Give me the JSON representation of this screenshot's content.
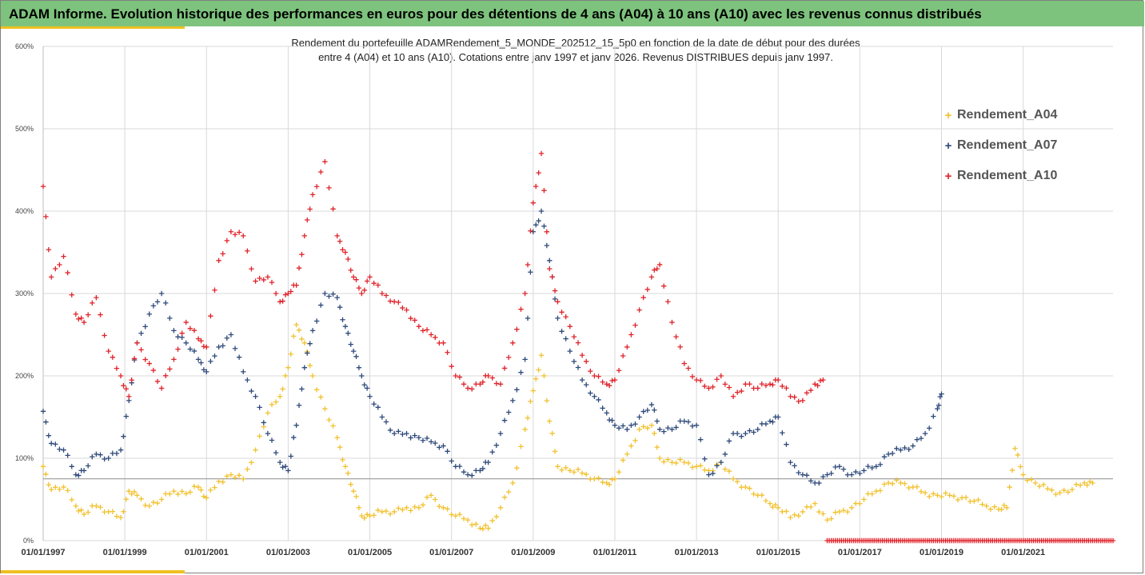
{
  "header": {
    "title": "ADAM Informe. Evolution historique des performances en euros pour des détentions de 4 ans (A04) à 10 ans (A10) avec les revenus connus distribués"
  },
  "chart_data": {
    "type": "scatter",
    "title_line1": "Rendement du portefeuille ADAMRendement_5_MONDE_202512_15_5p0 en fonction de la date de début pour des durées",
    "title_line2": "entre 4 (A04) et 10 ans (A10). Cotations entre janv 1997 et janv 2026. Revenus DISTRIBUES depuis janv 1997.",
    "xlabel": "",
    "ylabel": "",
    "xlim": [
      1997.0,
      2023.2
    ],
    "ylim": [
      0,
      600
    ],
    "reference_line": 75,
    "y_ticks": [
      "0%",
      "100%",
      "200%",
      "300%",
      "400%",
      "500%",
      "600%"
    ],
    "y_tick_values": [
      0,
      100,
      200,
      300,
      400,
      500,
      600
    ],
    "x_ticks": [
      "01/01/1997",
      "01/01/1999",
      "01/01/2001",
      "01/01/2003",
      "01/01/2005",
      "01/01/2007",
      "01/01/2009",
      "01/01/2011",
      "01/01/2013",
      "01/01/2015",
      "01/01/2017",
      "01/01/2019",
      "01/01/2021"
    ],
    "x_tick_values": [
      1997,
      1999,
      2001,
      2003,
      2005,
      2007,
      2009,
      2011,
      2013,
      2015,
      2017,
      2019,
      2021
    ],
    "series": [
      {
        "name": "Rendement_A04",
        "color": "#f2c12e",
        "points": [
          [
            1997.0,
            90
          ],
          [
            1997.2,
            62
          ],
          [
            1997.5,
            65
          ],
          [
            1997.8,
            42
          ],
          [
            1998.0,
            32
          ],
          [
            1998.3,
            42
          ],
          [
            1998.6,
            35
          ],
          [
            1998.9,
            28
          ],
          [
            1999.1,
            60
          ],
          [
            1999.3,
            55
          ],
          [
            1999.6,
            42
          ],
          [
            1999.9,
            50
          ],
          [
            2000.2,
            60
          ],
          [
            2000.5,
            57
          ],
          [
            2000.8,
            65
          ],
          [
            2001.0,
            52
          ],
          [
            2001.3,
            72
          ],
          [
            2001.6,
            80
          ],
          [
            2001.9,
            75
          ],
          [
            2002.2,
            110
          ],
          [
            2002.5,
            155
          ],
          [
            2002.8,
            175
          ],
          [
            2003.0,
            210
          ],
          [
            2003.2,
            262
          ],
          [
            2003.4,
            240
          ],
          [
            2003.6,
            200
          ],
          [
            2003.9,
            160
          ],
          [
            2004.2,
            125
          ],
          [
            2004.4,
            90
          ],
          [
            2004.6,
            60
          ],
          [
            2004.8,
            30
          ],
          [
            2005.0,
            30
          ],
          [
            2005.3,
            35
          ],
          [
            2005.6,
            35
          ],
          [
            2005.9,
            40
          ],
          [
            2006.2,
            40
          ],
          [
            2006.5,
            55
          ],
          [
            2006.8,
            40
          ],
          [
            2007.1,
            30
          ],
          [
            2007.4,
            25
          ],
          [
            2007.7,
            15
          ],
          [
            2007.9,
            15
          ],
          [
            2008.2,
            40
          ],
          [
            2008.5,
            70
          ],
          [
            2008.8,
            135
          ],
          [
            2009.0,
            182
          ],
          [
            2009.2,
            225
          ],
          [
            2009.4,
            145
          ],
          [
            2009.6,
            90
          ],
          [
            2009.9,
            85
          ],
          [
            2010.2,
            82
          ],
          [
            2010.5,
            75
          ],
          [
            2010.8,
            70
          ],
          [
            2011.0,
            75
          ],
          [
            2011.3,
            105
          ],
          [
            2011.6,
            135
          ],
          [
            2011.9,
            140
          ],
          [
            2012.1,
            100
          ],
          [
            2012.4,
            95
          ],
          [
            2012.7,
            95
          ],
          [
            2013.0,
            90
          ],
          [
            2013.3,
            85
          ],
          [
            2013.6,
            95
          ],
          [
            2013.9,
            75
          ],
          [
            2014.2,
            65
          ],
          [
            2014.5,
            55
          ],
          [
            2014.8,
            45
          ],
          [
            2015.0,
            40
          ],
          [
            2015.3,
            28
          ],
          [
            2015.6,
            35
          ],
          [
            2015.9,
            45
          ],
          [
            2016.2,
            25
          ],
          [
            2016.5,
            35
          ],
          [
            2016.8,
            40
          ],
          [
            2017.1,
            50
          ],
          [
            2017.4,
            60
          ],
          [
            2017.7,
            70
          ],
          [
            2018.0,
            70
          ],
          [
            2018.3,
            65
          ],
          [
            2018.6,
            58
          ],
          [
            2018.9,
            55
          ],
          [
            2019.2,
            55
          ],
          [
            2019.5,
            52
          ],
          [
            2019.8,
            48
          ],
          [
            2020.1,
            42
          ],
          [
            2020.4,
            38
          ],
          [
            2020.6,
            40
          ],
          [
            2020.8,
            112
          ],
          [
            2021.0,
            80
          ],
          [
            2021.3,
            70
          ],
          [
            2021.6,
            63
          ],
          [
            2021.9,
            58
          ],
          [
            2022.2,
            62
          ],
          [
            2022.5,
            70
          ],
          [
            2022.7,
            70
          ]
        ]
      },
      {
        "name": "Rendement_A07",
        "color": "#2e4a7a",
        "points": [
          [
            1997.0,
            157
          ],
          [
            1997.2,
            118
          ],
          [
            1997.5,
            110
          ],
          [
            1997.8,
            80
          ],
          [
            1998.0,
            85
          ],
          [
            1998.3,
            105
          ],
          [
            1998.6,
            100
          ],
          [
            1998.9,
            110
          ],
          [
            1999.1,
            170
          ],
          [
            1999.3,
            240
          ],
          [
            1999.6,
            275
          ],
          [
            1999.9,
            300
          ],
          [
            2000.2,
            255
          ],
          [
            2000.5,
            240
          ],
          [
            2000.8,
            220
          ],
          [
            2001.0,
            205
          ],
          [
            2001.3,
            235
          ],
          [
            2001.6,
            250
          ],
          [
            2001.9,
            205
          ],
          [
            2002.2,
            175
          ],
          [
            2002.5,
            130
          ],
          [
            2002.8,
            95
          ],
          [
            2003.0,
            85
          ],
          [
            2003.2,
            140
          ],
          [
            2003.4,
            210
          ],
          [
            2003.6,
            255
          ],
          [
            2003.9,
            300
          ],
          [
            2004.2,
            295
          ],
          [
            2004.4,
            260
          ],
          [
            2004.6,
            230
          ],
          [
            2004.8,
            200
          ],
          [
            2005.0,
            175
          ],
          [
            2005.3,
            150
          ],
          [
            2005.6,
            130
          ],
          [
            2005.9,
            130
          ],
          [
            2006.2,
            125
          ],
          [
            2006.5,
            120
          ],
          [
            2006.8,
            115
          ],
          [
            2007.1,
            90
          ],
          [
            2007.4,
            80
          ],
          [
            2007.7,
            85
          ],
          [
            2007.9,
            95
          ],
          [
            2008.2,
            130
          ],
          [
            2008.5,
            170
          ],
          [
            2008.8,
            220
          ],
          [
            2009.0,
            375
          ],
          [
            2009.2,
            400
          ],
          [
            2009.4,
            340
          ],
          [
            2009.6,
            270
          ],
          [
            2009.9,
            230
          ],
          [
            2010.2,
            195
          ],
          [
            2010.5,
            175
          ],
          [
            2010.8,
            155
          ],
          [
            2011.0,
            140
          ],
          [
            2011.3,
            135
          ],
          [
            2011.6,
            150
          ],
          [
            2011.9,
            165
          ],
          [
            2012.1,
            135
          ],
          [
            2012.4,
            135
          ],
          [
            2012.7,
            145
          ],
          [
            2013.0,
            140
          ],
          [
            2013.3,
            80
          ],
          [
            2013.6,
            95
          ],
          [
            2013.9,
            130
          ],
          [
            2014.2,
            130
          ],
          [
            2014.5,
            135
          ],
          [
            2014.8,
            145
          ],
          [
            2015.0,
            150
          ],
          [
            2015.3,
            95
          ],
          [
            2015.6,
            80
          ],
          [
            2015.9,
            70
          ],
          [
            2016.2,
            80
          ],
          [
            2016.5,
            90
          ],
          [
            2016.8,
            80
          ],
          [
            2017.1,
            85
          ],
          [
            2017.4,
            90
          ],
          [
            2017.7,
            105
          ],
          [
            2018.0,
            110
          ],
          [
            2018.3,
            115
          ],
          [
            2018.6,
            130
          ],
          [
            2018.9,
            160
          ],
          [
            2019.0,
            178
          ]
        ]
      },
      {
        "name": "Rendement_A10",
        "color": "#e0232a",
        "points": [
          [
            1997.0,
            430
          ],
          [
            1997.2,
            320
          ],
          [
            1997.5,
            345
          ],
          [
            1997.8,
            275
          ],
          [
            1998.0,
            265
          ],
          [
            1998.3,
            295
          ],
          [
            1998.6,
            230
          ],
          [
            1998.9,
            200
          ],
          [
            1999.1,
            175
          ],
          [
            1999.3,
            240
          ],
          [
            1999.6,
            215
          ],
          [
            1999.9,
            185
          ],
          [
            2000.2,
            220
          ],
          [
            2000.5,
            265
          ],
          [
            2000.8,
            245
          ],
          [
            2001.0,
            235
          ],
          [
            2001.3,
            340
          ],
          [
            2001.6,
            375
          ],
          [
            2001.9,
            370
          ],
          [
            2002.2,
            315
          ],
          [
            2002.5,
            320
          ],
          [
            2002.8,
            290
          ],
          [
            2003.0,
            300
          ],
          [
            2003.2,
            310
          ],
          [
            2003.4,
            370
          ],
          [
            2003.6,
            420
          ],
          [
            2003.9,
            460
          ],
          [
            2004.2,
            370
          ],
          [
            2004.4,
            350
          ],
          [
            2004.6,
            320
          ],
          [
            2004.8,
            300
          ],
          [
            2005.0,
            320
          ],
          [
            2005.3,
            300
          ],
          [
            2005.6,
            290
          ],
          [
            2005.9,
            280
          ],
          [
            2006.2,
            260
          ],
          [
            2006.5,
            250
          ],
          [
            2006.8,
            240
          ],
          [
            2007.1,
            200
          ],
          [
            2007.4,
            185
          ],
          [
            2007.7,
            190
          ],
          [
            2007.9,
            200
          ],
          [
            2008.2,
            190
          ],
          [
            2008.5,
            240
          ],
          [
            2008.8,
            300
          ],
          [
            2009.0,
            410
          ],
          [
            2009.2,
            470
          ],
          [
            2009.4,
            330
          ],
          [
            2009.6,
            290
          ],
          [
            2009.9,
            260
          ],
          [
            2010.2,
            225
          ],
          [
            2010.5,
            200
          ],
          [
            2010.8,
            190
          ],
          [
            2011.0,
            195
          ],
          [
            2011.3,
            235
          ],
          [
            2011.6,
            280
          ],
          [
            2011.9,
            320
          ],
          [
            2012.1,
            335
          ],
          [
            2012.4,
            265
          ],
          [
            2012.7,
            215
          ],
          [
            2013.0,
            195
          ],
          [
            2013.3,
            185
          ],
          [
            2013.6,
            200
          ],
          [
            2013.9,
            175
          ],
          [
            2014.2,
            190
          ],
          [
            2014.5,
            185
          ],
          [
            2014.8,
            190
          ],
          [
            2015.0,
            195
          ],
          [
            2015.3,
            175
          ],
          [
            2015.6,
            170
          ],
          [
            2015.9,
            190
          ],
          [
            2016.1,
            195
          ]
        ]
      }
    ],
    "zero_band": {
      "series": "Rendement_A10",
      "from": 2016.2,
      "to": 2023.2,
      "value": 0
    }
  }
}
